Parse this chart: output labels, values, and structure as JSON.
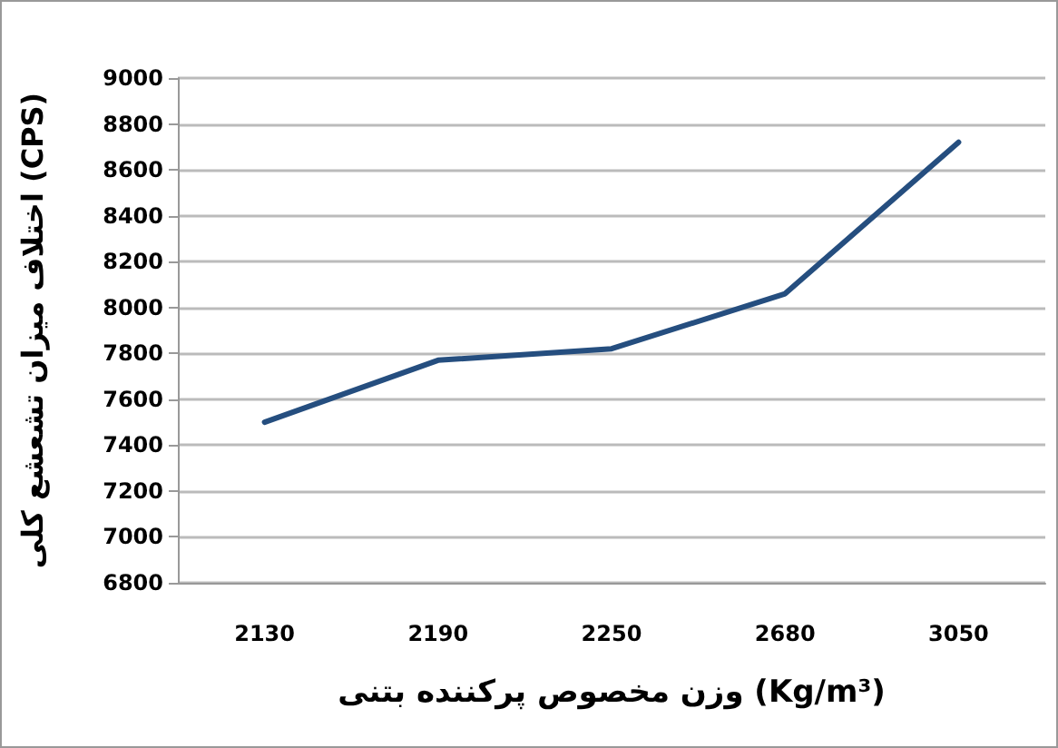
{
  "chart_data": {
    "type": "line",
    "xlabel": "وزن مخصوص پرکننده بتنی (Kg/m³)",
    "ylabel": "اختلاف میزان تشعشع کلی (CPS)",
    "categories": [
      "2130",
      "2190",
      "2250",
      "2680",
      "3050"
    ],
    "series": [
      {
        "color": "#254e7f",
        "values": [
          7500,
          7770,
          7820,
          8060,
          8720
        ]
      }
    ],
    "ylim": [
      6800,
      9000
    ],
    "yticks": [
      6800,
      7000,
      7200,
      7400,
      7600,
      7800,
      8000,
      8200,
      8400,
      8600,
      8800,
      9000
    ],
    "grid": "y",
    "marker": "none",
    "line_style": "solid"
  }
}
